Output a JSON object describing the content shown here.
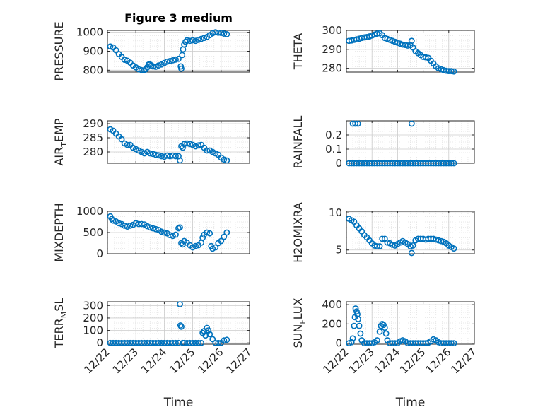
{
  "figure": {
    "title": "Figure 3 medium"
  },
  "colors": {
    "series": "#0072BD",
    "axis": "#262626",
    "grid": "#d3d3d3"
  },
  "chart_data": [
    {
      "id": "pressure",
      "type": "scatter",
      "title": "Figure 3 medium",
      "ylabel": "PRESSURE",
      "ylabel_sub": "",
      "xlabel": "",
      "ylim": [
        790,
        1010
      ],
      "yticks": [
        800,
        900,
        1000
      ],
      "yticklabels": [
        "800",
        "900",
        "1000"
      ],
      "xlim": [
        0,
        5
      ],
      "xticks": [
        0,
        1,
        2,
        3,
        4,
        5
      ],
      "xticklabels": [],
      "grid": true,
      "x": [
        0.1,
        0.2,
        0.3,
        0.4,
        0.5,
        0.6,
        0.7,
        0.8,
        0.9,
        1.0,
        1.1,
        1.2,
        1.3,
        1.35,
        1.4,
        1.45,
        1.5,
        1.55,
        1.6,
        1.7,
        1.8,
        1.9,
        2.0,
        2.1,
        2.2,
        2.3,
        2.4,
        2.5,
        2.58,
        2.6,
        2.63,
        2.66,
        2.7,
        2.75,
        2.8,
        2.9,
        3.0,
        3.1,
        3.2,
        3.3,
        3.4,
        3.5,
        3.6,
        3.7,
        3.8,
        3.9,
        4.0,
        4.1,
        4.2
      ],
      "y": [
        925,
        920,
        905,
        885,
        870,
        855,
        850,
        840,
        825,
        815,
        805,
        800,
        800,
        805,
        815,
        830,
        830,
        825,
        820,
        818,
        825,
        830,
        838,
        845,
        848,
        852,
        856,
        860,
        820,
        808,
        880,
        910,
        935,
        950,
        958,
        955,
        958,
        955,
        960,
        965,
        970,
        975,
        985,
        995,
        1000,
        998,
        997,
        993,
        990
      ]
    },
    {
      "id": "theta",
      "type": "scatter",
      "ylabel": "THETA",
      "ylabel_sub": "",
      "xlabel": "",
      "ylim": [
        278,
        300
      ],
      "yticks": [
        280,
        290,
        300
      ],
      "yticklabels": [
        "280",
        "290",
        "300"
      ],
      "xlim": [
        0,
        5
      ],
      "xticks": [
        0,
        1,
        2,
        3,
        4,
        5
      ],
      "xticklabels": [],
      "grid": true,
      "x": [
        0.1,
        0.2,
        0.3,
        0.4,
        0.5,
        0.6,
        0.7,
        0.8,
        0.9,
        1.0,
        1.1,
        1.2,
        1.3,
        1.4,
        1.5,
        1.6,
        1.7,
        1.8,
        1.9,
        2.0,
        2.1,
        2.2,
        2.3,
        2.4,
        2.5,
        2.55,
        2.6,
        2.7,
        2.8,
        2.9,
        3.0,
        3.1,
        3.2,
        3.3,
        3.4,
        3.5,
        3.6,
        3.7,
        3.8,
        3.9,
        4.0,
        4.1,
        4.2
      ],
      "y": [
        294.5,
        294.7,
        295,
        295.3,
        295.6,
        296,
        296.3,
        296.5,
        296.8,
        297.3,
        297.8,
        298.3,
        298.5,
        297.5,
        296,
        295.5,
        295,
        294.5,
        294,
        293.5,
        293,
        292.5,
        292.3,
        292,
        292.2,
        294.5,
        291,
        289,
        288,
        287,
        286,
        285.8,
        285.5,
        284,
        282.5,
        281,
        280,
        279.5,
        279,
        278.7,
        278.5,
        278.5,
        278.3
      ]
    },
    {
      "id": "air_temp",
      "type": "scatter",
      "ylabel": "AIR",
      "ylabel_sub": "T",
      "ylabel_suffix": "EMP",
      "xlabel": "",
      "ylim": [
        276,
        291
      ],
      "yticks": [
        280,
        285,
        290
      ],
      "yticklabels": [
        "280",
        "285",
        "290"
      ],
      "xlim": [
        0,
        5
      ],
      "xticks": [
        0,
        1,
        2,
        3,
        4,
        5
      ],
      "xticklabels": [],
      "grid": true,
      "x": [
        0.1,
        0.2,
        0.3,
        0.4,
        0.5,
        0.6,
        0.7,
        0.8,
        0.9,
        1.0,
        1.1,
        1.2,
        1.3,
        1.4,
        1.5,
        1.6,
        1.7,
        1.8,
        1.9,
        2.0,
        2.1,
        2.2,
        2.3,
        2.4,
        2.5,
        2.55,
        2.6,
        2.65,
        2.7,
        2.8,
        2.9,
        3.0,
        3.1,
        3.2,
        3.3,
        3.4,
        3.5,
        3.6,
        3.7,
        3.8,
        3.9,
        4.0,
        4.1,
        4.2
      ],
      "y": [
        288,
        287.5,
        286.5,
        285.5,
        284.5,
        283,
        282.5,
        282.5,
        281.5,
        281,
        280.5,
        280,
        279.5,
        280,
        279.5,
        279.3,
        279,
        278.8,
        278.5,
        278.3,
        278.7,
        278.5,
        278.7,
        278.5,
        278.5,
        277,
        282,
        281.5,
        282.8,
        283,
        282.8,
        282.5,
        282,
        282.3,
        282.5,
        281.5,
        280.5,
        280.5,
        280,
        279.5,
        279,
        278,
        277.3,
        277
      ]
    },
    {
      "id": "rainfall",
      "type": "scatter",
      "ylabel": "RAINFALL",
      "ylabel_sub": "",
      "xlabel": "",
      "ylim": [
        0,
        0.3
      ],
      "yticks": [
        0,
        0.1,
        0.2
      ],
      "yticklabels": [
        "0",
        "0.1",
        "0.2"
      ],
      "xlim": [
        0,
        5
      ],
      "xticks": [
        0,
        1,
        2,
        3,
        4,
        5
      ],
      "xticklabels": [],
      "grid": true,
      "x": [
        0.1,
        0.2,
        0.3,
        0.4,
        0.5,
        0.6,
        0.7,
        0.8,
        0.9,
        1.0,
        1.1,
        1.2,
        1.3,
        1.4,
        1.5,
        1.6,
        1.7,
        1.8,
        1.9,
        2.0,
        2.1,
        2.2,
        2.3,
        2.4,
        2.5,
        2.6,
        2.7,
        2.8,
        2.9,
        3.0,
        3.1,
        3.2,
        3.3,
        3.4,
        3.5,
        3.6,
        3.7,
        3.8,
        3.9,
        4.0,
        4.1,
        4.2,
        0.25,
        0.35,
        0.45,
        2.55
      ],
      "y": [
        0,
        0,
        0,
        0,
        0,
        0,
        0,
        0,
        0,
        0,
        0,
        0,
        0,
        0,
        0,
        0,
        0,
        0,
        0,
        0,
        0,
        0,
        0,
        0,
        0,
        0,
        0,
        0,
        0,
        0,
        0,
        0,
        0,
        0,
        0,
        0,
        0,
        0,
        0,
        0,
        0,
        0,
        0.28,
        0.28,
        0.28,
        0.28
      ]
    },
    {
      "id": "mixdepth",
      "type": "scatter",
      "ylabel": "MIXDEPTH",
      "ylabel_sub": "",
      "xlabel": "",
      "ylim": [
        0,
        1000
      ],
      "yticks": [
        0,
        500,
        1000
      ],
      "yticklabels": [
        "0",
        "500",
        "1000"
      ],
      "xlim": [
        0,
        5
      ],
      "xticks": [
        0,
        1,
        2,
        3,
        4,
        5
      ],
      "xticklabels": [],
      "grid": true,
      "x": [
        0.1,
        0.15,
        0.2,
        0.3,
        0.4,
        0.5,
        0.6,
        0.7,
        0.8,
        0.9,
        1.0,
        1.1,
        1.2,
        1.3,
        1.4,
        1.5,
        1.6,
        1.7,
        1.8,
        1.9,
        2.0,
        2.1,
        2.2,
        2.3,
        2.4,
        2.5,
        2.55,
        2.6,
        2.65,
        2.7,
        2.8,
        2.9,
        3.0,
        3.1,
        3.2,
        3.3,
        3.35,
        3.4,
        3.5,
        3.6,
        3.65,
        3.7,
        3.8,
        3.9,
        4.0,
        4.1,
        4.2
      ],
      "y": [
        880,
        820,
        780,
        760,
        720,
        700,
        660,
        640,
        660,
        680,
        720,
        700,
        700,
        690,
        650,
        620,
        600,
        580,
        560,
        520,
        500,
        480,
        440,
        420,
        450,
        600,
        620,
        250,
        220,
        300,
        260,
        200,
        150,
        180,
        200,
        260,
        380,
        450,
        500,
        480,
        180,
        120,
        150,
        250,
        300,
        400,
        500
      ]
    },
    {
      "id": "h2omixra",
      "type": "scatter",
      "ylabel": "H2OMIXRA",
      "ylabel_sub": "",
      "xlabel": "",
      "ylim": [
        4.5,
        10.2
      ],
      "yticks": [
        5,
        10
      ],
      "yticklabels": [
        "5",
        "10"
      ],
      "xlim": [
        0,
        5
      ],
      "xticks": [
        0,
        1,
        2,
        3,
        4,
        5
      ],
      "xticklabels": [],
      "grid": true,
      "x": [
        0.1,
        0.2,
        0.3,
        0.4,
        0.5,
        0.6,
        0.7,
        0.8,
        0.9,
        1.0,
        1.1,
        1.2,
        1.3,
        1.4,
        1.5,
        1.6,
        1.7,
        1.8,
        1.9,
        2.0,
        2.1,
        2.2,
        2.3,
        2.4,
        2.5,
        2.55,
        2.6,
        2.7,
        2.8,
        2.9,
        3.0,
        3.1,
        3.2,
        3.3,
        3.4,
        3.5,
        3.6,
        3.7,
        3.8,
        3.9,
        4.0,
        4.1,
        4.2
      ],
      "y": [
        9.2,
        9,
        8.8,
        8.3,
        7.9,
        7.5,
        7,
        6.7,
        6.3,
        5.9,
        5.6,
        5.5,
        5.5,
        6.5,
        6.5,
        6,
        5.9,
        5.7,
        5.6,
        5.8,
        6,
        6.2,
        6,
        5.8,
        5.5,
        4.6,
        5.6,
        6.3,
        6.5,
        6.5,
        6.5,
        6.4,
        6.5,
        6.5,
        6.5,
        6.4,
        6.3,
        6.2,
        6.1,
        5.9,
        5.6,
        5.4,
        5.2
      ]
    },
    {
      "id": "terr_msl",
      "type": "scatter",
      "ylabel": "TERR",
      "ylabel_sub": "M",
      "ylabel_suffix": "SL",
      "xlabel": "Time",
      "ylim": [
        -10,
        330
      ],
      "yticks": [
        0,
        100,
        200,
        300
      ],
      "yticklabels": [
        "0",
        "100",
        "200",
        "300"
      ],
      "xlim": [
        0,
        5
      ],
      "xticks": [
        0,
        1,
        2,
        3,
        4,
        5
      ],
      "xticklabels": [
        "12/22",
        "12/23",
        "12/24",
        "12/25",
        "12/26",
        "12/27"
      ],
      "grid": true,
      "x": [
        0.1,
        0.2,
        0.3,
        0.4,
        0.5,
        0.6,
        0.7,
        0.8,
        0.9,
        1.0,
        1.1,
        1.2,
        1.3,
        1.4,
        1.5,
        1.6,
        1.7,
        1.8,
        1.9,
        2.0,
        2.1,
        2.2,
        2.3,
        2.4,
        2.5,
        2.55,
        2.57,
        2.6,
        2.65,
        2.7,
        2.8,
        2.9,
        3.0,
        3.1,
        3.2,
        3.3,
        3.35,
        3.4,
        3.45,
        3.5,
        3.55,
        3.6,
        3.7,
        3.8,
        3.9,
        4.0,
        4.1,
        4.2
      ],
      "y": [
        0,
        0,
        0,
        0,
        0,
        0,
        0,
        0,
        0,
        0,
        0,
        0,
        0,
        0,
        0,
        0,
        0,
        0,
        0,
        0,
        0,
        0,
        0,
        0,
        0,
        310,
        140,
        130,
        0,
        0,
        0,
        0,
        0,
        0,
        0,
        0,
        80,
        95,
        60,
        120,
        100,
        70,
        30,
        0,
        0,
        0,
        20,
        25
      ]
    },
    {
      "id": "sun_flux",
      "type": "scatter",
      "ylabel": "SUN",
      "ylabel_sub": "F",
      "ylabel_suffix": "LUX",
      "xlabel": "Time",
      "ylim": [
        -10,
        430
      ],
      "yticks": [
        0,
        200,
        400
      ],
      "yticklabels": [
        "0",
        "200",
        "400"
      ],
      "xlim": [
        0,
        5
      ],
      "xticks": [
        0,
        1,
        2,
        3,
        4,
        5
      ],
      "xticklabels": [
        "12/22",
        "12/23",
        "12/24",
        "12/25",
        "12/26",
        "12/27"
      ],
      "grid": true,
      "x": [
        0.1,
        0.2,
        0.25,
        0.3,
        0.33,
        0.36,
        0.4,
        0.43,
        0.46,
        0.5,
        0.55,
        0.6,
        0.7,
        0.8,
        0.9,
        1.0,
        1.1,
        1.2,
        1.3,
        1.35,
        1.4,
        1.45,
        1.5,
        1.55,
        1.6,
        1.7,
        1.8,
        1.9,
        2.0,
        2.1,
        2.2,
        2.3,
        2.4,
        2.5,
        2.6,
        2.7,
        2.8,
        2.9,
        3.0,
        3.1,
        3.2,
        3.3,
        3.4,
        3.5,
        3.6,
        3.7,
        3.8,
        3.9,
        4.0,
        4.1,
        4.2
      ],
      "y": [
        0,
        10,
        50,
        180,
        270,
        360,
        330,
        300,
        250,
        180,
        100,
        30,
        0,
        0,
        0,
        0,
        10,
        30,
        120,
        180,
        200,
        190,
        160,
        100,
        30,
        0,
        0,
        0,
        0,
        20,
        30,
        20,
        0,
        0,
        0,
        0,
        0,
        0,
        0,
        0,
        5,
        20,
        40,
        30,
        10,
        0,
        0,
        0,
        0,
        0,
        0
      ]
    }
  ]
}
